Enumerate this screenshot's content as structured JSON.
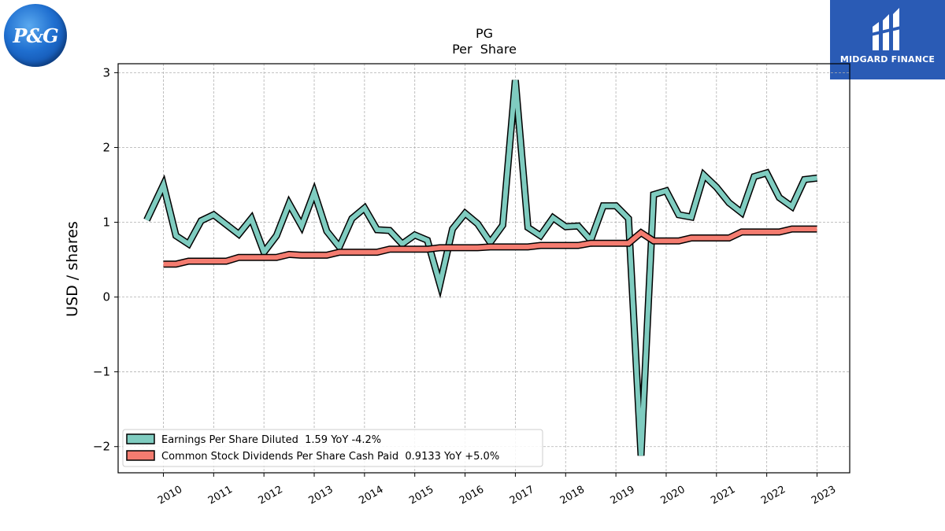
{
  "logos": {
    "left_brand": "P&G",
    "right_brand": "MIDGARD FINANCE"
  },
  "chart_data": {
    "type": "line",
    "title": "PG",
    "subtitle": "Per  Share",
    "ylabel": "USD / shares",
    "xlabel": "",
    "ylim": [
      -2.35,
      3.12
    ],
    "xlim": [
      2009.1,
      2023.65
    ],
    "yticks": [
      3,
      2,
      1,
      0,
      -1,
      -2
    ],
    "ytick_labels": [
      "3",
      "2",
      "1",
      "0",
      "−1",
      "−2"
    ],
    "xticks": [
      2010,
      2011,
      2012,
      2013,
      2014,
      2015,
      2016,
      2017,
      2018,
      2019,
      2020,
      2021,
      2022,
      2023
    ],
    "xtick_labels": [
      "2010",
      "2011",
      "2012",
      "2013",
      "2014",
      "2015",
      "2016",
      "2017",
      "2018",
      "2019",
      "2020",
      "2021",
      "2022",
      "2023"
    ],
    "grid": true,
    "legend_position": "lower-left",
    "series": [
      {
        "name": "Earnings Per Share Diluted  1.59 YoY -4.2%",
        "color": "#7fccc0",
        "points": [
          [
            2009.67,
            1.03
          ],
          [
            2010.0,
            1.5
          ],
          [
            2010.25,
            0.82
          ],
          [
            2010.5,
            0.71
          ],
          [
            2010.75,
            1.02
          ],
          [
            2011.0,
            1.1
          ],
          [
            2011.25,
            0.97
          ],
          [
            2011.5,
            0.84
          ],
          [
            2011.75,
            1.05
          ],
          [
            2012.0,
            0.6
          ],
          [
            2012.25,
            0.82
          ],
          [
            2012.5,
            1.25
          ],
          [
            2012.75,
            0.95
          ],
          [
            2013.0,
            1.4
          ],
          [
            2013.25,
            0.88
          ],
          [
            2013.5,
            0.67
          ],
          [
            2013.75,
            1.05
          ],
          [
            2014.0,
            1.19
          ],
          [
            2014.25,
            0.9
          ],
          [
            2014.5,
            0.89
          ],
          [
            2014.75,
            0.71
          ],
          [
            2015.0,
            0.83
          ],
          [
            2015.25,
            0.76
          ],
          [
            2015.5,
            0.17
          ],
          [
            2015.75,
            0.91
          ],
          [
            2016.0,
            1.12
          ],
          [
            2016.25,
            0.98
          ],
          [
            2016.5,
            0.73
          ],
          [
            2016.75,
            0.96
          ],
          [
            2017.0,
            2.9
          ],
          [
            2017.25,
            0.93
          ],
          [
            2017.5,
            0.82
          ],
          [
            2017.75,
            1.06
          ],
          [
            2018.0,
            0.94
          ],
          [
            2018.25,
            0.95
          ],
          [
            2018.5,
            0.76
          ],
          [
            2018.75,
            1.22
          ],
          [
            2019.0,
            1.22
          ],
          [
            2019.25,
            1.05
          ],
          [
            2019.5,
            -2.12
          ],
          [
            2019.75,
            1.37
          ],
          [
            2020.0,
            1.42
          ],
          [
            2020.25,
            1.1
          ],
          [
            2020.5,
            1.07
          ],
          [
            2020.75,
            1.63
          ],
          [
            2021.0,
            1.47
          ],
          [
            2021.25,
            1.26
          ],
          [
            2021.5,
            1.13
          ],
          [
            2021.75,
            1.61
          ],
          [
            2022.0,
            1.66
          ],
          [
            2022.25,
            1.33
          ],
          [
            2022.5,
            1.21
          ],
          [
            2022.75,
            1.57
          ],
          [
            2023.0,
            1.59
          ]
        ]
      },
      {
        "name": "Common Stock Dividends Per Share Cash Paid  0.9133 YoY +5.0%",
        "color": "#f47c70",
        "points": [
          [
            2010.0,
            0.44
          ],
          [
            2010.25,
            0.44
          ],
          [
            2010.5,
            0.48
          ],
          [
            2010.75,
            0.48
          ],
          [
            2011.0,
            0.48
          ],
          [
            2011.25,
            0.48
          ],
          [
            2011.5,
            0.53
          ],
          [
            2011.75,
            0.53
          ],
          [
            2012.0,
            0.53
          ],
          [
            2012.25,
            0.53
          ],
          [
            2012.5,
            0.57
          ],
          [
            2012.75,
            0.56
          ],
          [
            2013.0,
            0.56
          ],
          [
            2013.25,
            0.56
          ],
          [
            2013.5,
            0.6
          ],
          [
            2013.75,
            0.6
          ],
          [
            2014.0,
            0.6
          ],
          [
            2014.25,
            0.6
          ],
          [
            2014.5,
            0.64
          ],
          [
            2014.75,
            0.64
          ],
          [
            2015.0,
            0.64
          ],
          [
            2015.25,
            0.64
          ],
          [
            2015.5,
            0.66
          ],
          [
            2015.75,
            0.66
          ],
          [
            2016.0,
            0.66
          ],
          [
            2016.25,
            0.66
          ],
          [
            2016.5,
            0.67
          ],
          [
            2016.75,
            0.67
          ],
          [
            2017.0,
            0.67
          ],
          [
            2017.25,
            0.67
          ],
          [
            2017.5,
            0.69
          ],
          [
            2017.75,
            0.69
          ],
          [
            2018.0,
            0.69
          ],
          [
            2018.25,
            0.69
          ],
          [
            2018.5,
            0.72
          ],
          [
            2018.75,
            0.72
          ],
          [
            2019.0,
            0.72
          ],
          [
            2019.25,
            0.72
          ],
          [
            2019.5,
            0.86
          ],
          [
            2019.75,
            0.75
          ],
          [
            2020.0,
            0.75
          ],
          [
            2020.25,
            0.75
          ],
          [
            2020.5,
            0.79
          ],
          [
            2020.75,
            0.79
          ],
          [
            2021.0,
            0.79
          ],
          [
            2021.25,
            0.79
          ],
          [
            2021.5,
            0.87
          ],
          [
            2021.75,
            0.87
          ],
          [
            2022.0,
            0.87
          ],
          [
            2022.25,
            0.87
          ],
          [
            2022.5,
            0.91
          ],
          [
            2022.75,
            0.91
          ],
          [
            2023.0,
            0.91
          ]
        ]
      }
    ]
  }
}
